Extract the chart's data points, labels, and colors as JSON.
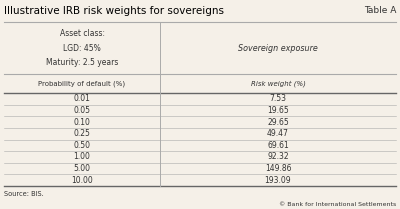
{
  "title": "Illustrative IRB risk weights for sovereigns",
  "table_label": "Table A",
  "asset_class_lines": [
    "Asset class:",
    "LGD: 45%",
    "Maturity: 2.5 years"
  ],
  "col2_header": "Sovereign exposure",
  "subheader_col1": "Probability of default (%)",
  "subheader_col2": "Risk weight (%)",
  "rows": [
    [
      "0.01",
      "7.53"
    ],
    [
      "0.05",
      "19.65"
    ],
    [
      "0.10",
      "29.65"
    ],
    [
      "0.25",
      "49.47"
    ],
    [
      "0.50",
      "69.61"
    ],
    [
      "1.00",
      "92.32"
    ],
    [
      "5.00",
      "149.86"
    ],
    [
      "10.00",
      "193.09"
    ]
  ],
  "source": "Source: BIS.",
  "copyright": "© Bank for International Settlements",
  "bg_color": "#f5f0e8",
  "line_color": "#aaaaaa",
  "title_color": "#000000",
  "text_color": "#333333"
}
